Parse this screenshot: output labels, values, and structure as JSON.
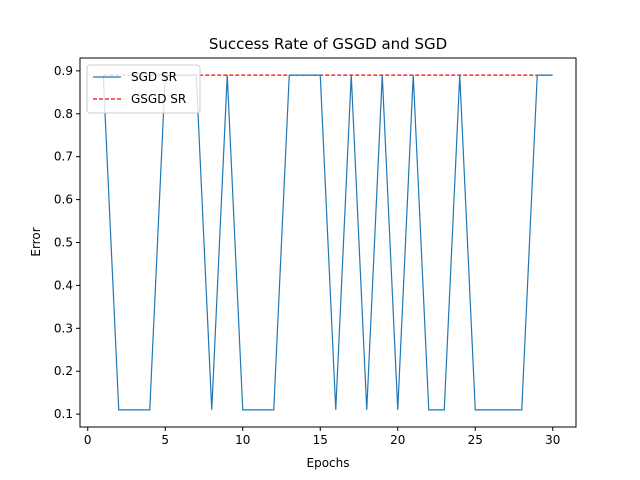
{
  "chart_data": {
    "type": "line",
    "title": "Success Rate of GSGD and SGD",
    "xlabel": "Epochs",
    "ylabel": "Error",
    "xlim": [
      -0.5,
      31.5
    ],
    "ylim": [
      0.07,
      0.93
    ],
    "xticks": [
      0,
      5,
      10,
      15,
      20,
      25,
      30
    ],
    "yticks": [
      0.1,
      0.2,
      0.3,
      0.4,
      0.5,
      0.6,
      0.7,
      0.8,
      0.9
    ],
    "grid": false,
    "legend_position": "top-left",
    "x": [
      1,
      2,
      3,
      4,
      5,
      6,
      7,
      8,
      9,
      10,
      11,
      12,
      13,
      14,
      15,
      16,
      17,
      18,
      19,
      20,
      21,
      22,
      23,
      24,
      25,
      26,
      27,
      28,
      29,
      30
    ],
    "series": [
      {
        "name": "SGD SR",
        "color": "#1f77b4",
        "style": "solid",
        "values": [
          0.89,
          0.11,
          0.11,
          0.11,
          0.89,
          0.89,
          0.89,
          0.11,
          0.89,
          0.11,
          0.11,
          0.11,
          0.89,
          0.89,
          0.89,
          0.11,
          0.89,
          0.11,
          0.89,
          0.11,
          0.89,
          0.11,
          0.11,
          0.89,
          0.11,
          0.11,
          0.11,
          0.11,
          0.89,
          0.89
        ]
      },
      {
        "name": "GSGD SR",
        "color": "#ff0000",
        "style": "dashed",
        "values": [
          0.89,
          0.89,
          0.89,
          0.89,
          0.89,
          0.89,
          0.89,
          0.89,
          0.89,
          0.89,
          0.89,
          0.89,
          0.89,
          0.89,
          0.89,
          0.89,
          0.89,
          0.89,
          0.89,
          0.89,
          0.89,
          0.89,
          0.89,
          0.89,
          0.89,
          0.89,
          0.89,
          0.89,
          0.89,
          0.89
        ]
      }
    ]
  }
}
